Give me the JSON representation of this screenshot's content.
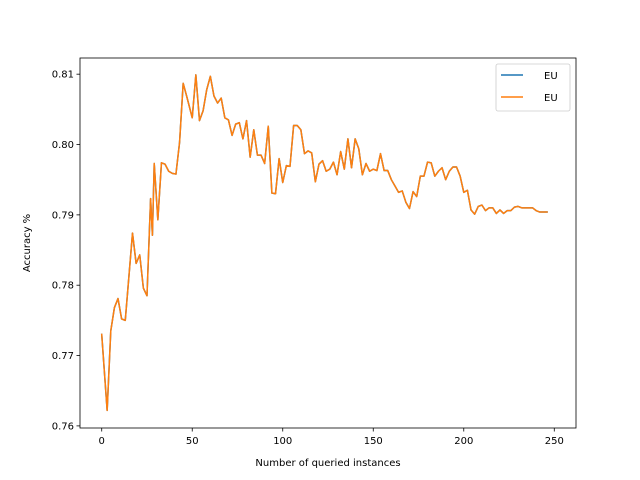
{
  "chart_data": {
    "type": "line",
    "xlabel": "Number of queried instances",
    "ylabel": "Accuracy %",
    "xlim": [
      -12,
      262
    ],
    "ylim": [
      0.7597,
      0.8123
    ],
    "xticks": [
      0,
      50,
      100,
      150,
      200,
      250
    ],
    "yticks": [
      0.76,
      0.77,
      0.78,
      0.79,
      0.8,
      0.81
    ],
    "ytick_labels": [
      "0.76",
      "0.77",
      "0.78",
      "0.79",
      "0.80",
      "0.81"
    ],
    "grid": false,
    "legend_position": "top-right",
    "series": [
      {
        "name": "EU",
        "color": "#1f77b4",
        "x": [
          0,
          3,
          5,
          7,
          9,
          11,
          13,
          15,
          17,
          19,
          21,
          23,
          25,
          27,
          28,
          29,
          31,
          33,
          35,
          37,
          39,
          41,
          43,
          45,
          47,
          48,
          50,
          52,
          54,
          56,
          58,
          60,
          62,
          64,
          66,
          68,
          70,
          72,
          74,
          76,
          78,
          80,
          82,
          84,
          86,
          88,
          90,
          92,
          94,
          96,
          98,
          100,
          102,
          104,
          106,
          108,
          110,
          112,
          114,
          116,
          118,
          120,
          122,
          124,
          126,
          128,
          130,
          132,
          134,
          136,
          138,
          140,
          142,
          144,
          146,
          148,
          150,
          152,
          154,
          156,
          158,
          160,
          162,
          164,
          166,
          168,
          170,
          172,
          174,
          176,
          178,
          180,
          182,
          184,
          186,
          188,
          190,
          192,
          194,
          196,
          198,
          200,
          202,
          204,
          206,
          208,
          210,
          212,
          214,
          216,
          218,
          220,
          222,
          224,
          226,
          228,
          230,
          232,
          234,
          236,
          238,
          240,
          242,
          244,
          246
        ],
        "values": [
          0.773,
          0.7622,
          0.7735,
          0.7768,
          0.7781,
          0.7752,
          0.775,
          0.7812,
          0.7874,
          0.7831,
          0.7843,
          0.7796,
          0.7785,
          0.7923,
          0.7871,
          0.7973,
          0.7893,
          0.7974,
          0.7972,
          0.7962,
          0.7959,
          0.7958,
          0.8003,
          0.8087,
          0.8068,
          0.8058,
          0.8038,
          0.8099,
          0.8034,
          0.8048,
          0.8078,
          0.8097,
          0.8069,
          0.8059,
          0.8066,
          0.8038,
          0.8035,
          0.8013,
          0.8029,
          0.8031,
          0.8008,
          0.8034,
          0.7982,
          0.8021,
          0.7985,
          0.7985,
          0.7973,
          0.8026,
          0.7931,
          0.793,
          0.798,
          0.7946,
          0.797,
          0.7969,
          0.8027,
          0.8027,
          0.8021,
          0.7987,
          0.7991,
          0.7988,
          0.7947,
          0.7972,
          0.7977,
          0.7962,
          0.7965,
          0.7975,
          0.7957,
          0.799,
          0.7965,
          0.8008,
          0.7967,
          0.8008,
          0.7994,
          0.7957,
          0.7973,
          0.7962,
          0.7965,
          0.7963,
          0.7987,
          0.7963,
          0.7963,
          0.795,
          0.7941,
          0.7932,
          0.7934,
          0.7918,
          0.7909,
          0.7933,
          0.7926,
          0.7955,
          0.7955,
          0.7975,
          0.7974,
          0.7955,
          0.7962,
          0.7967,
          0.795,
          0.7962,
          0.7968,
          0.7968,
          0.7955,
          0.7932,
          0.7935,
          0.7907,
          0.7901,
          0.7912,
          0.7914,
          0.7906,
          0.791,
          0.791,
          0.7902,
          0.7907,
          0.7902,
          0.7906,
          0.7906,
          0.7911,
          0.7912,
          0.791,
          0.791,
          0.791,
          0.791,
          0.7906,
          0.7904,
          0.7904,
          0.7904
        ]
      },
      {
        "name": "EU",
        "color": "#ff7f0e",
        "x": [
          0,
          3,
          5,
          7,
          9,
          11,
          13,
          15,
          17,
          19,
          21,
          23,
          25,
          27,
          28,
          29,
          31,
          33,
          35,
          37,
          39,
          41,
          43,
          45,
          47,
          48,
          50,
          52,
          54,
          56,
          58,
          60,
          62,
          64,
          66,
          68,
          70,
          72,
          74,
          76,
          78,
          80,
          82,
          84,
          86,
          88,
          90,
          92,
          94,
          96,
          98,
          100,
          102,
          104,
          106,
          108,
          110,
          112,
          114,
          116,
          118,
          120,
          122,
          124,
          126,
          128,
          130,
          132,
          134,
          136,
          138,
          140,
          142,
          144,
          146,
          148,
          150,
          152,
          154,
          156,
          158,
          160,
          162,
          164,
          166,
          168,
          170,
          172,
          174,
          176,
          178,
          180,
          182,
          184,
          186,
          188,
          190,
          192,
          194,
          196,
          198,
          200,
          202,
          204,
          206,
          208,
          210,
          212,
          214,
          216,
          218,
          220,
          222,
          224,
          226,
          228,
          230,
          232,
          234,
          236,
          238,
          240,
          242,
          244,
          246
        ],
        "values": [
          0.773,
          0.7622,
          0.7735,
          0.7768,
          0.7781,
          0.7752,
          0.775,
          0.7812,
          0.7874,
          0.7831,
          0.7843,
          0.7796,
          0.7785,
          0.7923,
          0.7871,
          0.7973,
          0.7893,
          0.7974,
          0.7972,
          0.7962,
          0.7959,
          0.7958,
          0.8003,
          0.8087,
          0.8068,
          0.8058,
          0.8038,
          0.8099,
          0.8034,
          0.8048,
          0.8078,
          0.8097,
          0.8069,
          0.8059,
          0.8066,
          0.8038,
          0.8035,
          0.8013,
          0.8029,
          0.8031,
          0.8008,
          0.8034,
          0.7982,
          0.8021,
          0.7985,
          0.7985,
          0.7973,
          0.8026,
          0.7931,
          0.793,
          0.798,
          0.7946,
          0.797,
          0.7969,
          0.8027,
          0.8027,
          0.8021,
          0.7987,
          0.7991,
          0.7988,
          0.7947,
          0.7972,
          0.7977,
          0.7962,
          0.7965,
          0.7975,
          0.7957,
          0.799,
          0.7965,
          0.8008,
          0.7967,
          0.8008,
          0.7994,
          0.7957,
          0.7973,
          0.7962,
          0.7965,
          0.7963,
          0.7987,
          0.7963,
          0.7963,
          0.795,
          0.7941,
          0.7932,
          0.7934,
          0.7918,
          0.7909,
          0.7933,
          0.7926,
          0.7955,
          0.7955,
          0.7975,
          0.7974,
          0.7955,
          0.7962,
          0.7967,
          0.795,
          0.7962,
          0.7968,
          0.7968,
          0.7955,
          0.7932,
          0.7935,
          0.7907,
          0.7901,
          0.7912,
          0.7914,
          0.7906,
          0.791,
          0.791,
          0.7902,
          0.7907,
          0.7902,
          0.7906,
          0.7906,
          0.7911,
          0.7912,
          0.791,
          0.791,
          0.791,
          0.791,
          0.7906,
          0.7904,
          0.7904,
          0.7904
        ]
      }
    ]
  }
}
